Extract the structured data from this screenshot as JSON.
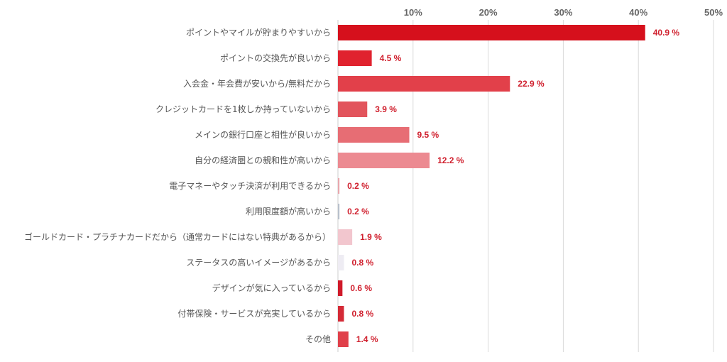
{
  "chart_data": {
    "type": "bar",
    "orientation": "horizontal",
    "title": "",
    "xlabel": "",
    "ylabel": "",
    "xlim": [
      0,
      50
    ],
    "ticks": [
      10,
      20,
      30,
      40,
      50
    ],
    "tick_labels": [
      "10%",
      "20%",
      "30%",
      "40%",
      "50%"
    ],
    "grid": true,
    "legend": "none",
    "categories": [
      "ポイントやマイルが貯まりやすいから",
      "ポイントの交換先が良いから",
      "入会金・年会費が安いから/無料だから",
      "クレジットカードを1枚しか持っていないから",
      "メインの銀行口座と相性が良いから",
      "自分の経済圏との親和性が高いから",
      "電子マネーやタッチ決済が利用できるから",
      "利用限度額が高いから",
      "ゴールドカード・プラチナカードだから（通常カードにはない特典があるから）",
      "ステータスの高いイメージがあるから",
      "デザインが気に入っているから",
      "付帯保険・サービスが充実しているから",
      "その他"
    ],
    "values": [
      40.9,
      4.5,
      22.9,
      3.9,
      9.5,
      12.2,
      0.2,
      0.2,
      1.9,
      0.8,
      0.6,
      0.8,
      1.4
    ],
    "value_labels": [
      "40.9 %",
      "4.5 %",
      "22.9 %",
      "3.9 %",
      "9.5 %",
      "12.2 %",
      "0.2 %",
      "0.2 %",
      "1.9 %",
      "0.8 %",
      "0.6 %",
      "0.8 %",
      "1.4 %"
    ],
    "bar_colors": [
      "#d6101c",
      "#e0222e",
      "#e2404a",
      "#e2545c",
      "#e76d74",
      "#ec8a91",
      "#e8a7ad",
      "#b8c0cc",
      "#f2c6ce",
      "#eeecf3",
      "#d01a2a",
      "#d42a36",
      "#e0404a"
    ],
    "label_color": "#d0202e"
  }
}
